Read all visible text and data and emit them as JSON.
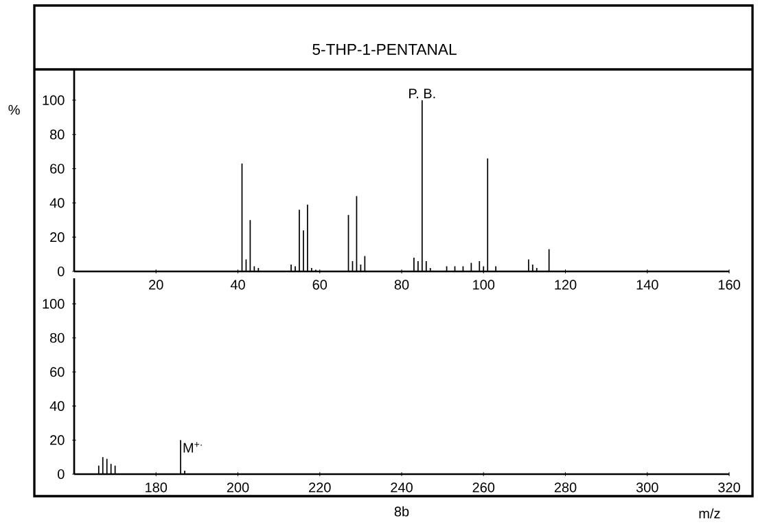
{
  "chart_data": [
    {
      "type": "bar",
      "title": "5-THP-1-PENTANAL",
      "ylabel": "%",
      "x": [
        41,
        42,
        43,
        44,
        45,
        53,
        54,
        55,
        56,
        57,
        58,
        59,
        67,
        68,
        69,
        70,
        71,
        83,
        84,
        85,
        86,
        87,
        91,
        93,
        95,
        97,
        99,
        100,
        101,
        103,
        111,
        112,
        113,
        116
      ],
      "values": [
        63,
        7,
        30,
        3,
        2,
        4,
        3,
        36,
        24,
        39,
        2,
        1,
        33,
        6,
        44,
        4,
        9,
        8,
        6,
        100,
        6,
        2,
        3,
        3,
        3,
        5,
        6,
        3,
        66,
        3,
        7,
        4,
        2,
        13
      ],
      "color": "#000000",
      "xlim": [
        0,
        160
      ],
      "ylim": [
        0,
        118
      ],
      "xticks": [
        20,
        40,
        60,
        80,
        100,
        120,
        140,
        160
      ],
      "yticks": [
        0,
        20,
        40,
        60,
        80,
        100
      ],
      "annotations": [
        {
          "text": "P. B.",
          "x": 85,
          "y": 100
        }
      ]
    },
    {
      "type": "bar",
      "xlabel": "m/z",
      "x": [
        166,
        167,
        168,
        169,
        170,
        186,
        187
      ],
      "values": [
        5,
        10,
        9,
        6,
        5,
        20,
        2
      ],
      "color": "#000000",
      "xlim": [
        160,
        320
      ],
      "ylim": [
        0,
        115
      ],
      "xticks": [
        180,
        200,
        220,
        240,
        260,
        280,
        300,
        320
      ],
      "yticks": [
        0,
        20,
        40,
        60,
        80,
        100
      ],
      "annotations": [
        {
          "text": "M$^{+·}$",
          "x": 186,
          "y": 20
        },
        "8b"
      ]
    }
  ]
}
